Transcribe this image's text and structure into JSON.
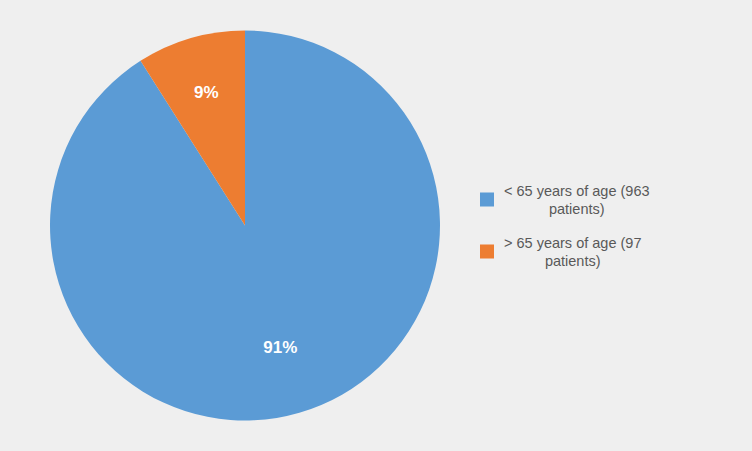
{
  "chart_data": {
    "type": "pie",
    "categories": [
      "< 65 years of age (963\n    patients)",
      "> 65 years of age (97\n    patients)"
    ],
    "values": [
      91,
      9
    ],
    "value_labels": [
      "91%",
      "9%"
    ],
    "colors": [
      "#5B9BD5",
      "#ED7D31"
    ],
    "data_labels": true,
    "legend": "right"
  }
}
